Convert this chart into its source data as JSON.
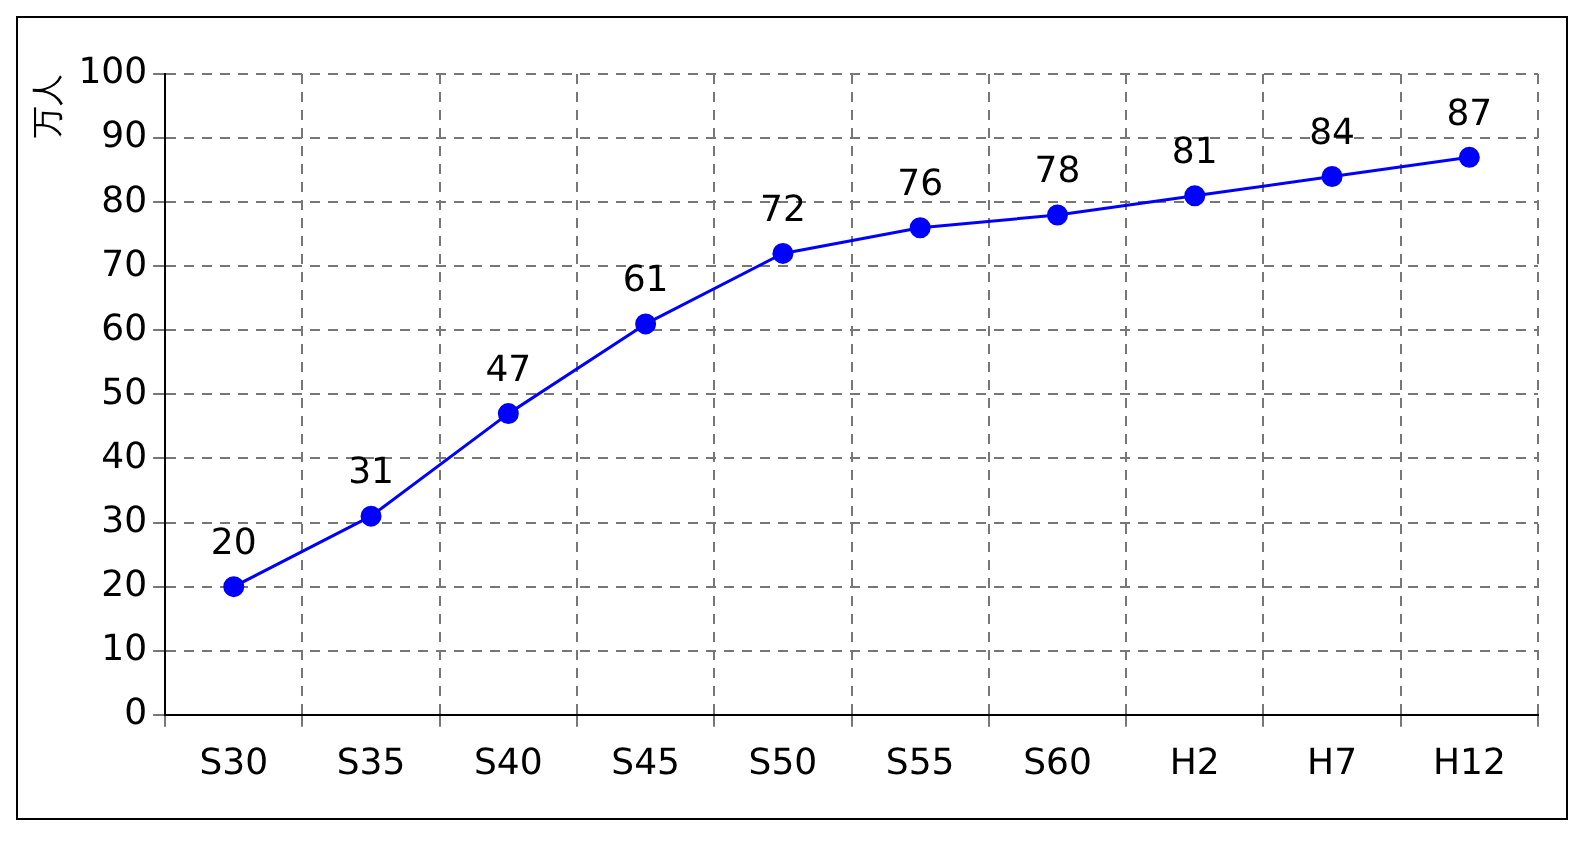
{
  "chart_data": {
    "type": "line",
    "ylabel": "万人",
    "categories": [
      "S30",
      "S35",
      "S40",
      "S45",
      "S50",
      "S55",
      "S60",
      "H2",
      "H7",
      "H12"
    ],
    "series": [
      {
        "color": "#0000ff",
        "values": [
          20,
          31,
          47,
          61,
          72,
          76,
          78,
          81,
          84,
          87
        ]
      }
    ],
    "ylim": [
      0,
      100
    ],
    "yticks": [
      0,
      10,
      20,
      30,
      40,
      50,
      60,
      70,
      80,
      90,
      100
    ],
    "grid": true,
    "marker": "circle",
    "line_style": "solid",
    "data_labels": true,
    "legend": false
  }
}
